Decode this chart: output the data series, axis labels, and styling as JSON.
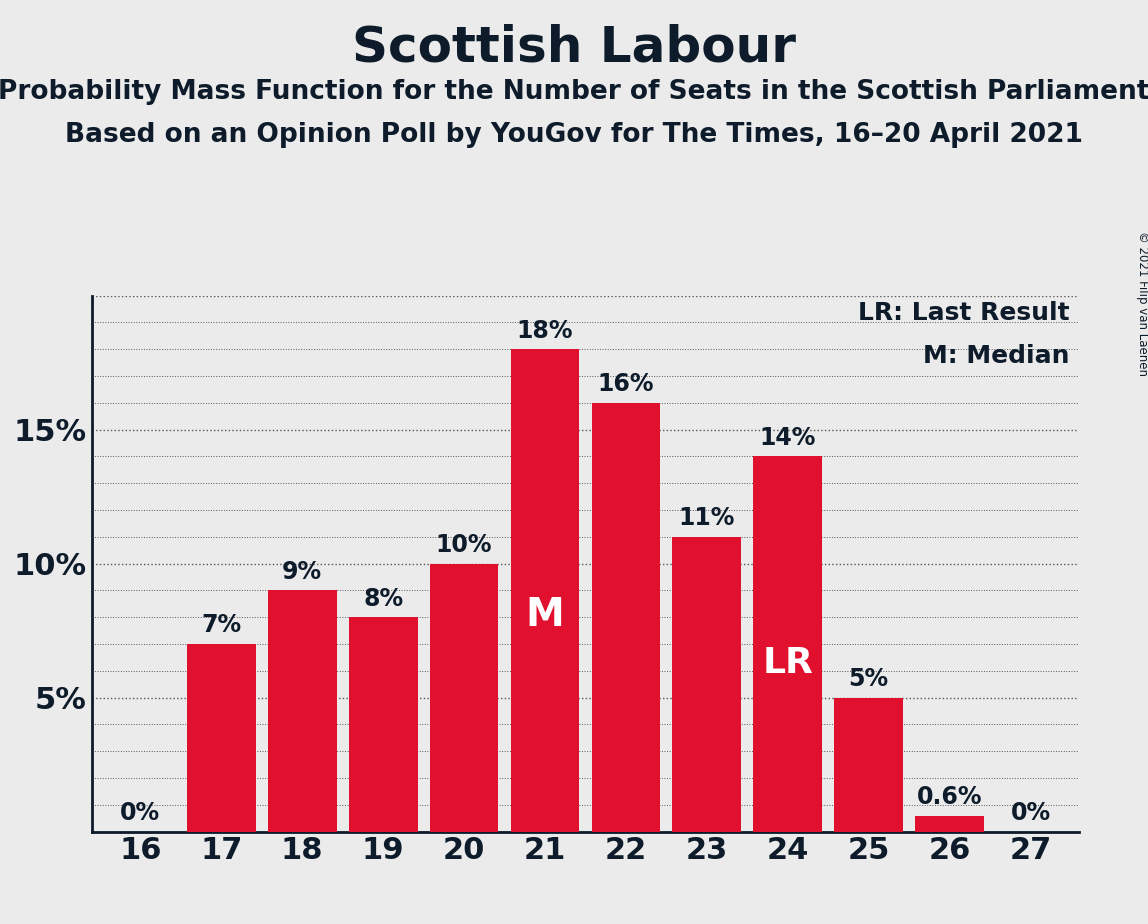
{
  "title": "Scottish Labour",
  "subtitle1": "Probability Mass Function for the Number of Seats in the Scottish Parliament",
  "subtitle2": "Based on an Opinion Poll by YouGov for The Times, 16–20 April 2021",
  "copyright": "© 2021 Filip van Laenen",
  "categories": [
    16,
    17,
    18,
    19,
    20,
    21,
    22,
    23,
    24,
    25,
    26,
    27
  ],
  "values": [
    0.0,
    7.0,
    9.0,
    8.0,
    10.0,
    18.0,
    16.0,
    11.0,
    14.0,
    5.0,
    0.6,
    0.0
  ],
  "bar_color": "#E0102E",
  "background_color": "#EBEBEB",
  "text_color": "#0D1B2A",
  "bar_labels": [
    "0%",
    "7%",
    "9%",
    "8%",
    "10%",
    "18%",
    "16%",
    "11%",
    "14%",
    "5%",
    "0.6%",
    "0%"
  ],
  "median_bar": 21,
  "last_result_bar": 24,
  "ylim": [
    0,
    20
  ],
  "yticks": [
    0,
    5,
    10,
    15
  ],
  "ytick_labels": [
    "",
    "5%",
    "10%",
    "15%"
  ],
  "legend_lr": "LR: Last Result",
  "legend_m": "M: Median",
  "grid_color": "#555555",
  "title_fontsize": 36,
  "subtitle_fontsize": 19,
  "bar_label_fontsize": 17,
  "tick_fontsize": 22,
  "legend_fontsize": 18,
  "m_label_fontsize": 28,
  "lr_label_fontsize": 26
}
